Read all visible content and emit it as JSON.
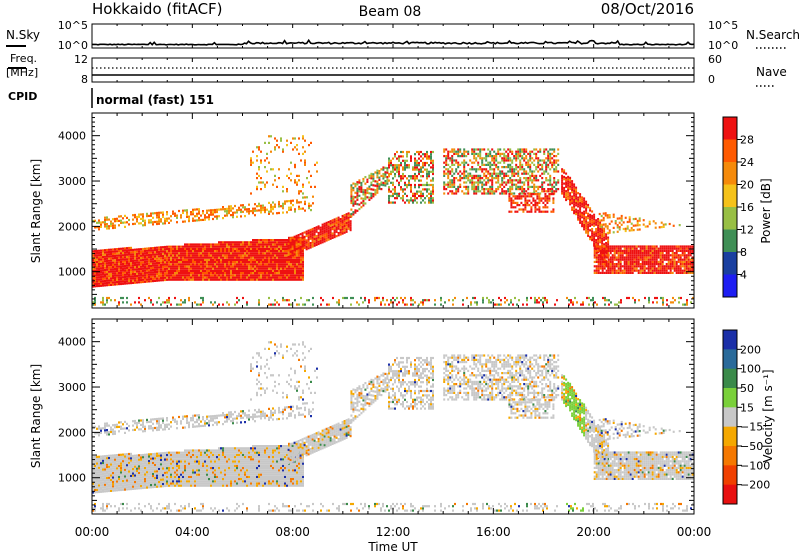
{
  "header": {
    "station": "Hokkaido (fitACF)",
    "beam": "Beam 08",
    "date": "08/Oct/2016"
  },
  "strip": {
    "nsky_label": "N.Sky",
    "nsearch_label": "N.Search",
    "noise_ticks": [
      "10^5",
      "10^0"
    ],
    "freq_label": "Freq.",
    "freq_unit": "[MHz]",
    "freq_ticks": [
      "12",
      "8"
    ],
    "nave_label": "Nave",
    "nave_ticks": [
      "60",
      "0"
    ],
    "cpid_label": "CPID",
    "cpid_value": "normal (fast) 151"
  },
  "chart_data": [
    {
      "type": "heatmap",
      "name": "power",
      "ylabel": "Slant Range [km]",
      "ylim": [
        200,
        4500
      ],
      "yticks": [
        1000,
        2000,
        3000,
        4000
      ],
      "colorbar_label": "Power [dB]",
      "colorbar_ticks": [
        "28",
        "24",
        "20",
        "16",
        "12",
        "8",
        "4"
      ],
      "colorbar_colors": [
        "#ee1111",
        "#ff5a00",
        "#f58a0a",
        "#f5c21a",
        "#98bf44",
        "#3f8f56",
        "#1a3fa0",
        "#1e1ef2"
      ]
    },
    {
      "type": "heatmap",
      "name": "velocity",
      "ylabel": "Slant Range [km]",
      "ylim": [
        200,
        4500
      ],
      "yticks": [
        1000,
        2000,
        3000,
        4000
      ],
      "colorbar_label": "Velocity [m s⁻¹]",
      "colorbar_ticks": [
        "200",
        "100",
        "50",
        "15",
        "−15",
        "−50",
        "−100",
        "−200"
      ],
      "colorbar_colors": [
        "#1b2fa8",
        "#2a6a9a",
        "#3a8a4a",
        "#7ad03a",
        "#c8c8c8",
        "#f5a800",
        "#f57800",
        "#f04000",
        "#e81010"
      ]
    }
  ],
  "xaxis": {
    "label": "Time UT",
    "ticks": [
      "00:00",
      "04:00",
      "08:00",
      "12:00",
      "16:00",
      "20:00",
      "00:00"
    ]
  },
  "colors": {
    "power_red": "#ee1111",
    "power_orange": "#f58a0a",
    "power_green": "#5aa05a",
    "velocity_gray": "#c8c8c8",
    "velocity_green": "#7ad03a"
  }
}
